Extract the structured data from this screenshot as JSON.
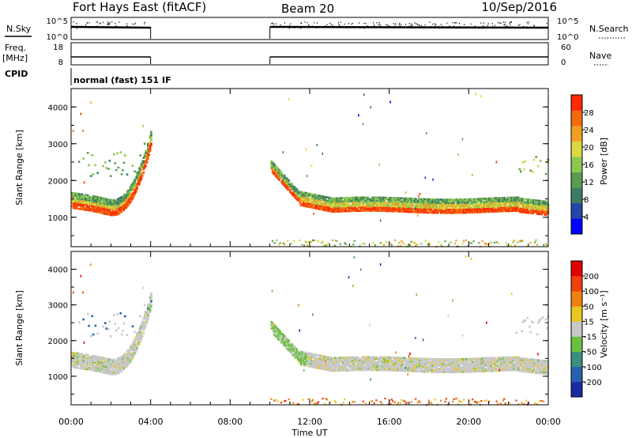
{
  "header": {
    "station": "Fort Hays East (fitACF)",
    "beam": "Beam 20",
    "date": "10/Sep/2016"
  },
  "top_panel": {
    "left_label": "N.Sky",
    "left_ticks": [
      "10^5",
      "10^0"
    ],
    "right_label": "N.Search",
    "right_ticks": [
      "10^5",
      "10^0"
    ]
  },
  "freq_panel": {
    "left_label_1": "Freq.",
    "left_label_2": "[MHz]",
    "left_ticks": [
      "18",
      "8"
    ],
    "right_label": "Nave",
    "right_ticks": [
      "60",
      "0"
    ]
  },
  "cpid": {
    "label": "CPID",
    "mode": "normal (fast) 151 IF"
  },
  "chart_data": [
    {
      "type": "heatmap",
      "name": "power",
      "ylabel": "Slant Range [km]",
      "ylim": [
        200,
        4500
      ],
      "yticks": [
        "1000",
        "2000",
        "3000",
        "4000"
      ],
      "colorbar_label": "Power [dB]",
      "colorbar_ticks": [
        "28",
        "24",
        "20",
        "16",
        "12",
        "8",
        "4"
      ],
      "colors": [
        "#0000ff",
        "#2346a8",
        "#3c7c64",
        "#5a9c50",
        "#8cc850",
        "#d8d840",
        "#f0a020",
        "#f06a10",
        "#ff2a00"
      ],
      "data_gap_hours": [
        4.0,
        10.0
      ]
    },
    {
      "type": "heatmap",
      "name": "velocity",
      "ylabel": "Slant Range [km]",
      "ylim": [
        200,
        4500
      ],
      "yticks": [
        "1000",
        "2000",
        "3000",
        "4000"
      ],
      "colorbar_label": "Velocity [m s⁻¹]",
      "colorbar_ticks": [
        "200",
        "100",
        "50",
        "15",
        "-15",
        "-50",
        "-100",
        "-200"
      ],
      "colors": [
        "#1a2aa0",
        "#2860b0",
        "#3c9080",
        "#6cc040",
        "#c8c8c8",
        "#e8c820",
        "#f08010",
        "#f04010",
        "#e00000"
      ],
      "data_gap_hours": [
        4.0,
        10.0
      ]
    }
  ],
  "x_axis": {
    "label": "Time UT",
    "ticks": [
      "00:00",
      "04:00",
      "08:00",
      "12:00",
      "16:00",
      "20:00",
      "00:00"
    ]
  }
}
